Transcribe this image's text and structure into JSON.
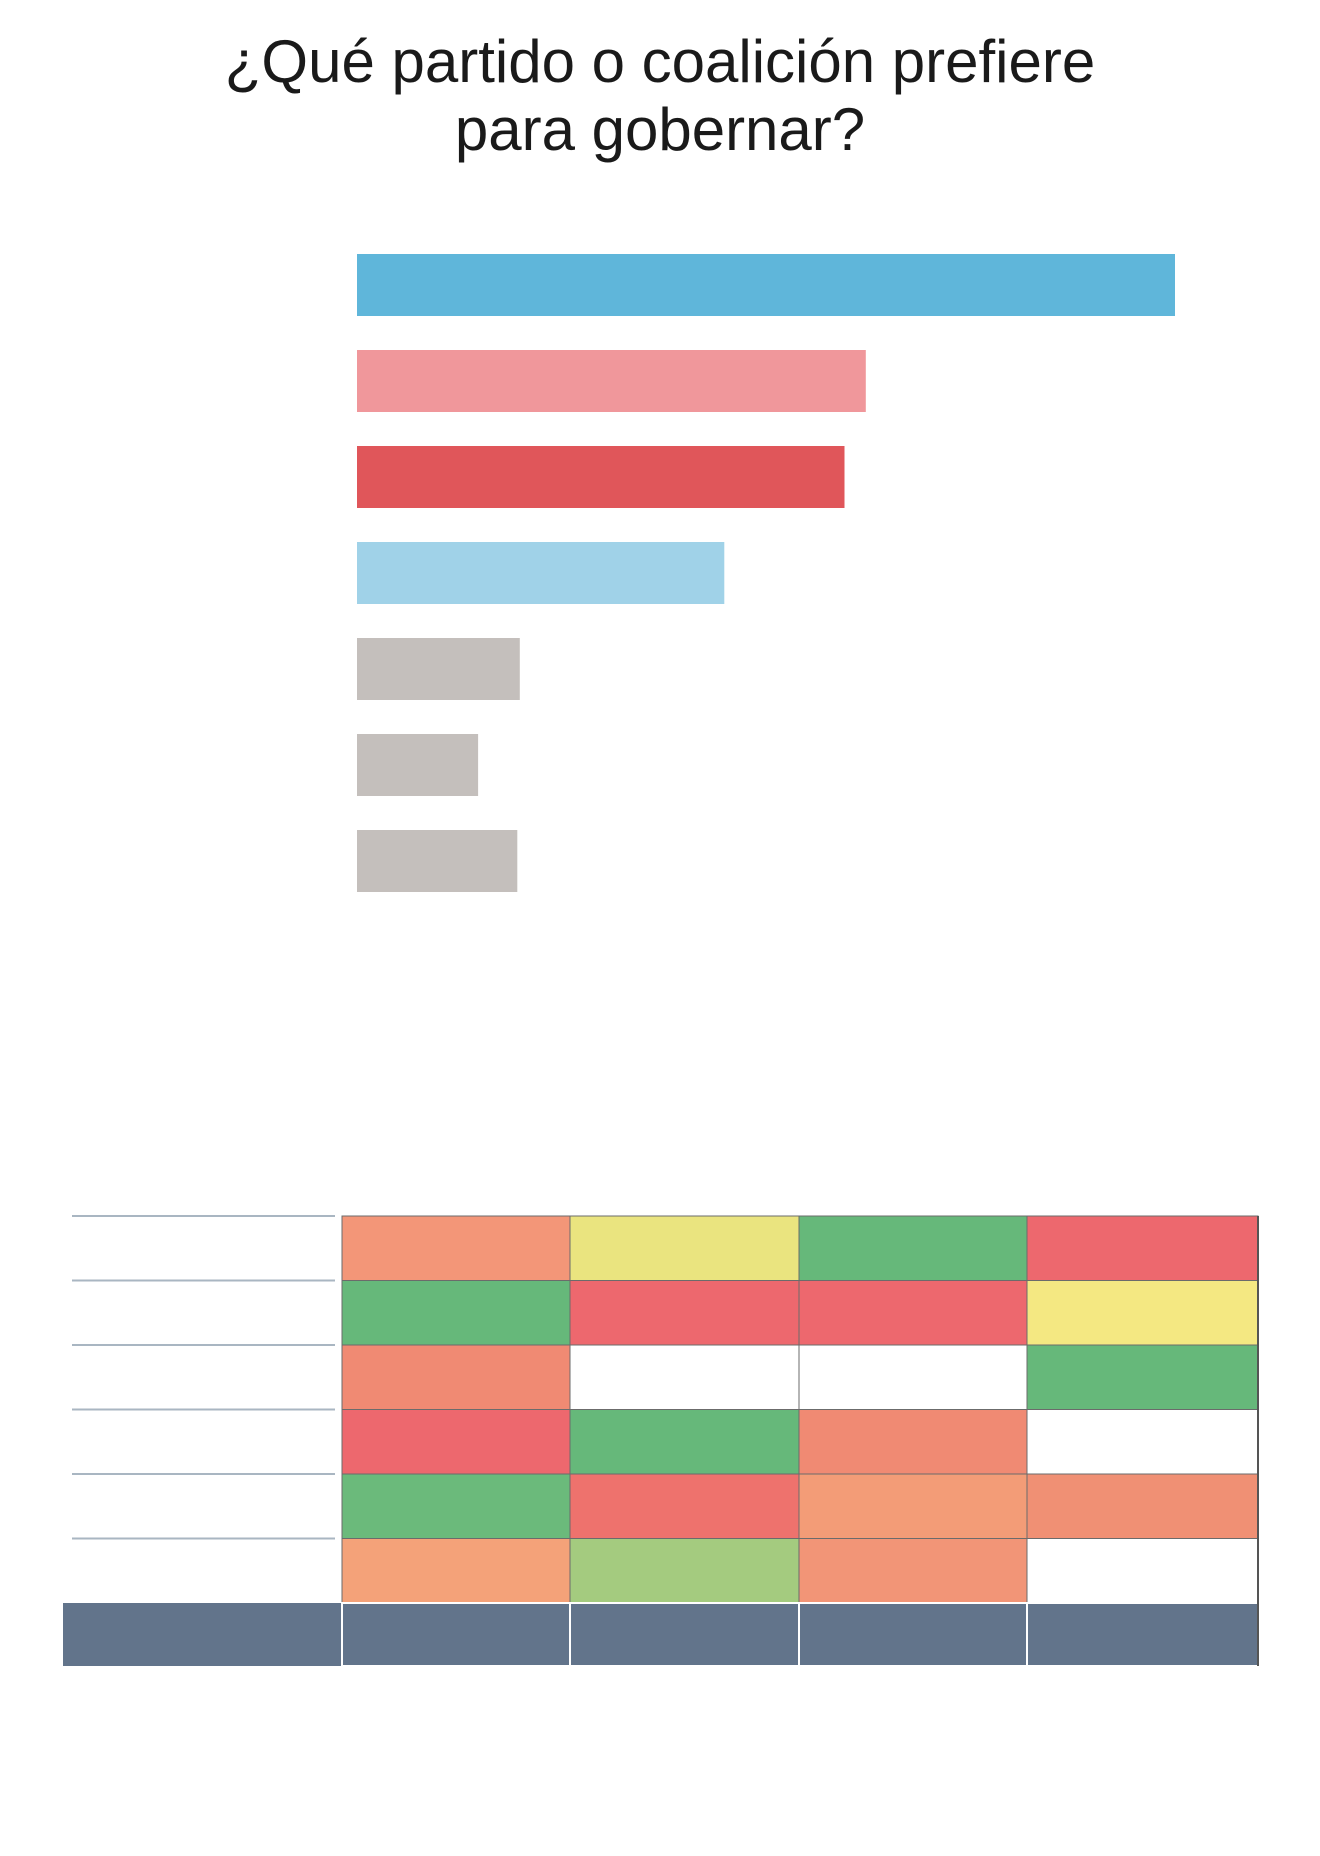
{
  "chart_data": [
    {
      "type": "bar",
      "orientation": "horizontal",
      "title_lines": [
        "¿Qué partido o coalición prefiere",
        "para gobernar?"
      ],
      "values": [
        100,
        62.2,
        59.6,
        44.9,
        19.9,
        14.8,
        19.6
      ],
      "colors": [
        "#5fb6da",
        "#f0979b",
        "#e0565a",
        "#a0d2e8",
        "#c4bfbc",
        "#c4bfbc",
        "#c4bfbc"
      ],
      "xlim": [
        0,
        100
      ],
      "grid": false
    },
    {
      "type": "heatmap",
      "rows": 6,
      "columns": 4,
      "cells": [
        [
          "#f39678",
          "#eae47f",
          "#66b87a",
          "#ed686e"
        ],
        [
          "#66b87a",
          "#ed686e",
          "#ed686e",
          "#f4e882"
        ],
        [
          "#f08a73",
          "#ffffff",
          "#ffffff",
          "#66b87a"
        ],
        [
          "#ed686e",
          "#66b87a",
          "#f08a73",
          "#ffffff"
        ],
        [
          "#6bba7b",
          "#ee726d",
          "#f39c77",
          "#f09074"
        ],
        [
          "#f4a279",
          "#a4cb7f",
          "#f29577",
          "#ffffff"
        ]
      ],
      "footer_color": "#62748b"
    }
  ]
}
